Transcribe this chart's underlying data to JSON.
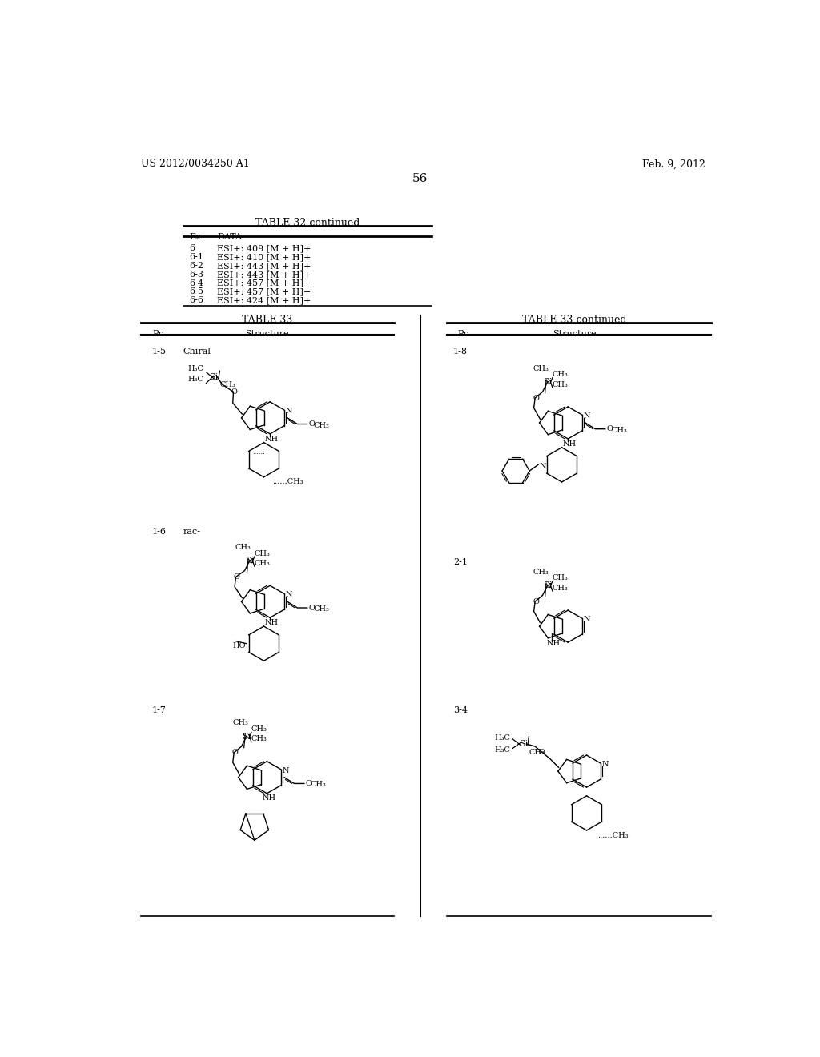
{
  "background_color": "#ffffff",
  "page_number": "56",
  "patent_number": "US 2012/0034250 A1",
  "patent_date": "Feb. 9, 2012",
  "table32_title": "TABLE 32-continued",
  "table32_headers": [
    "Ex",
    "DATA"
  ],
  "table32_rows": [
    [
      "6",
      "ESI+: 409 [M + H]+"
    ],
    [
      "6-1",
      "ESI+: 410 [M + H]+"
    ],
    [
      "6-2",
      "ESI+: 443 [M + H]+"
    ],
    [
      "6-3",
      "ESI+: 443 [M + H]+"
    ],
    [
      "6-4",
      "ESI+: 457 [M + H]+"
    ],
    [
      "6-5",
      "ESI+: 457 [M + H]+"
    ],
    [
      "6-6",
      "ESI+: 424 [M + H]+"
    ]
  ],
  "table33_title": "TABLE 33",
  "table33cont_title": "TABLE 33-continued",
  "compounds_left": [
    {
      "id": "1-5",
      "label": "Chiral"
    },
    {
      "id": "1-6",
      "label": "rac-"
    },
    {
      "id": "1-7",
      "label": ""
    }
  ],
  "compounds_right": [
    {
      "id": "1-8",
      "label": ""
    },
    {
      "id": "2-1",
      "label": ""
    },
    {
      "id": "3-4",
      "label": ""
    }
  ]
}
